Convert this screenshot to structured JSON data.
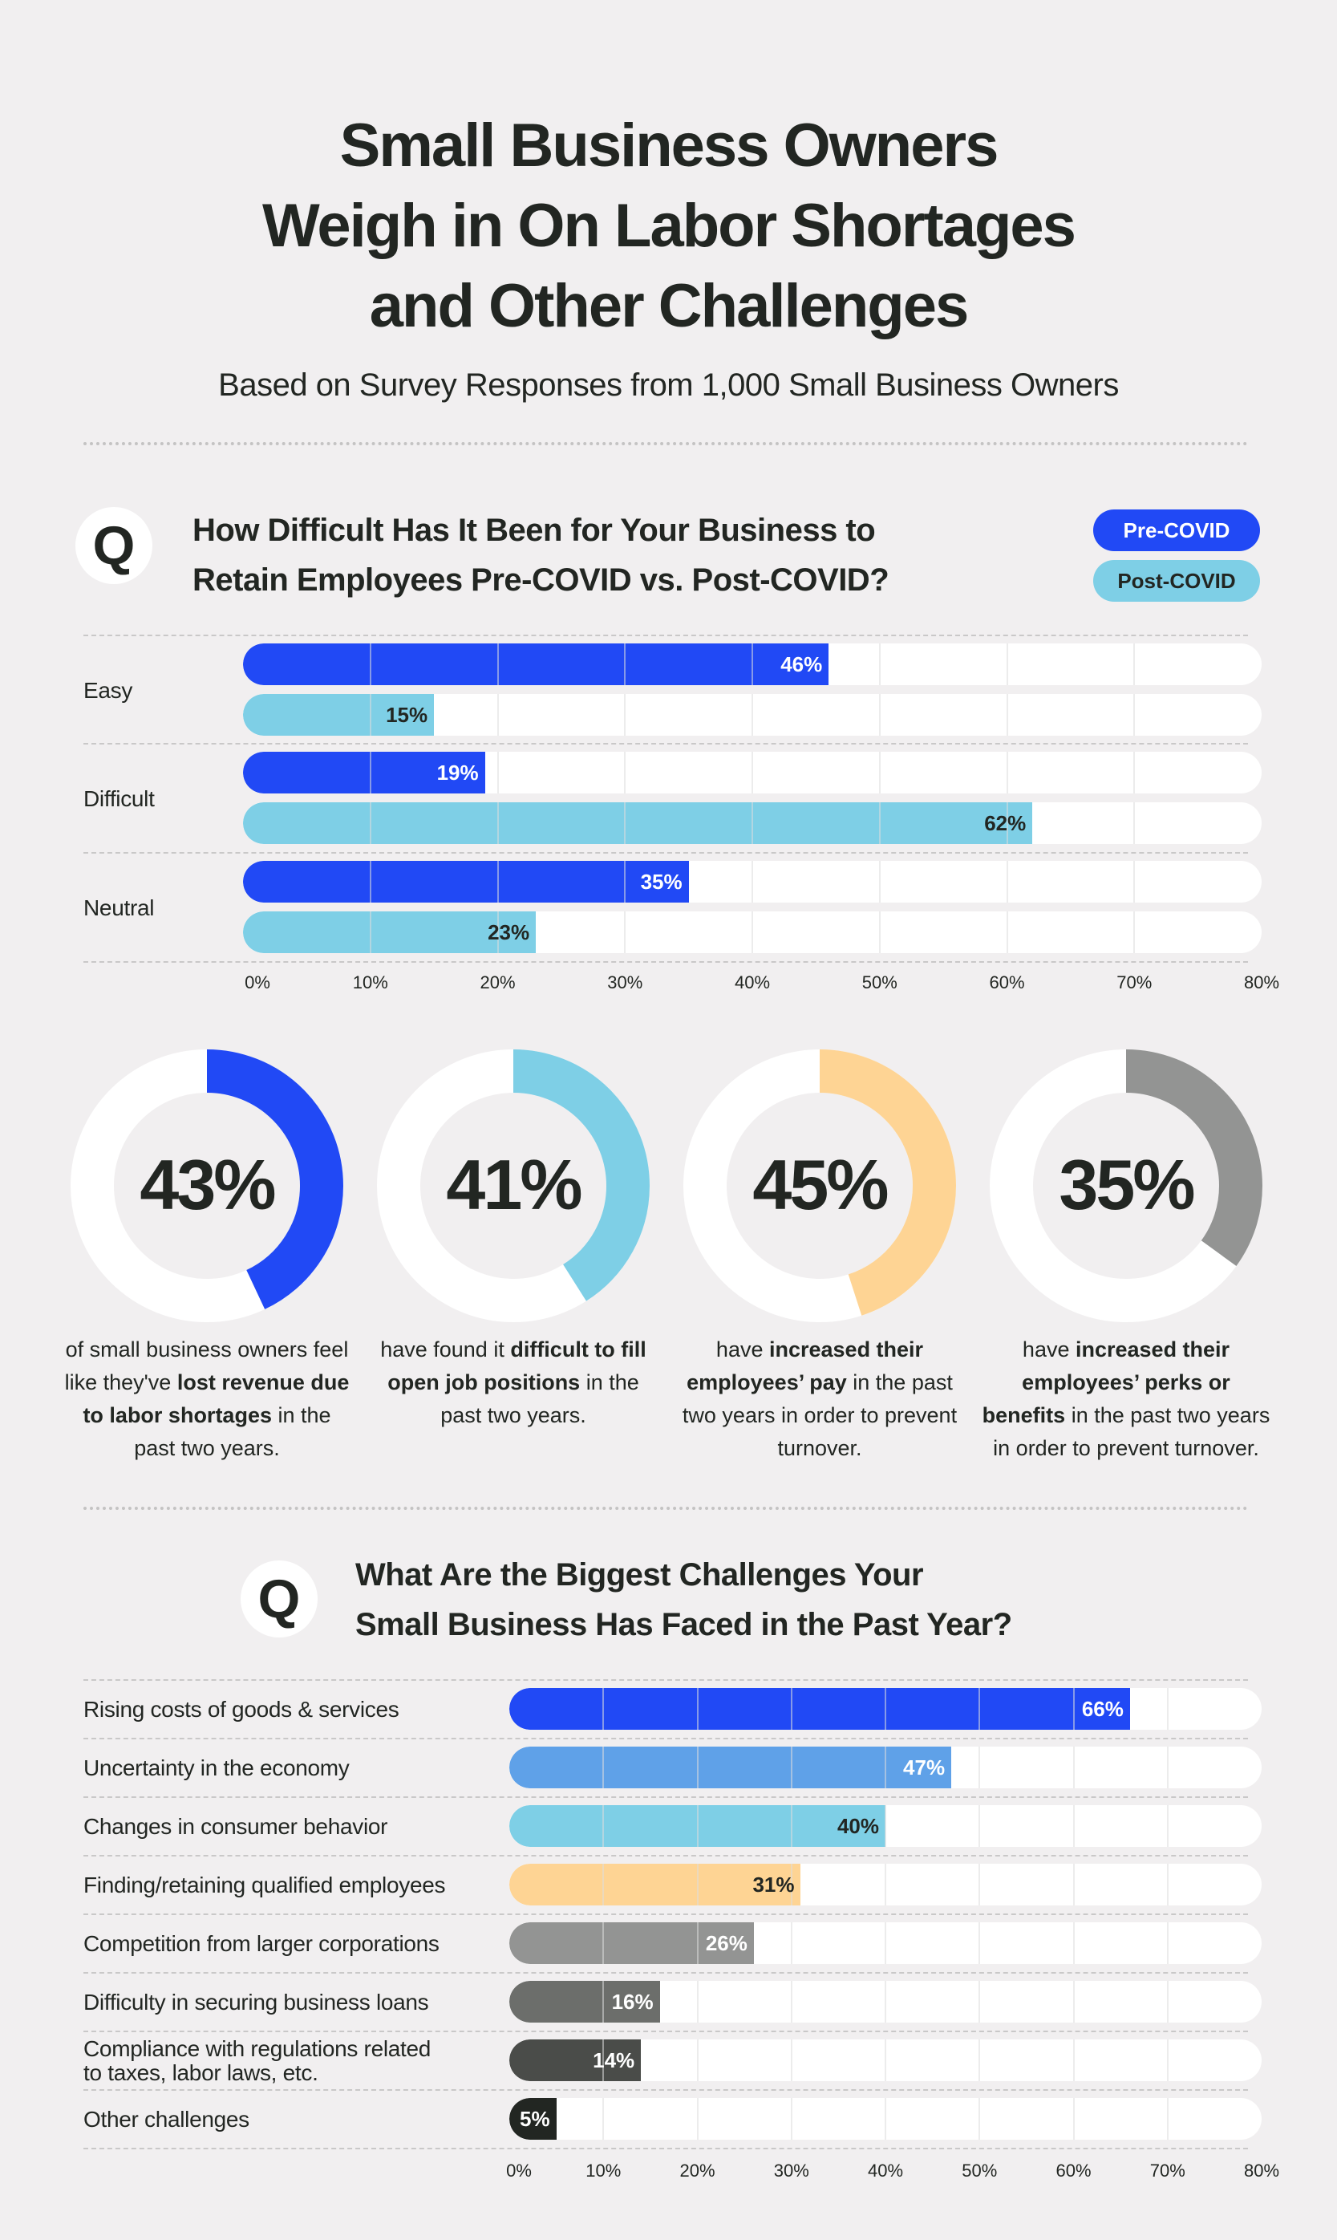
{
  "header": {
    "title_lines": [
      "Small Business Owners",
      "Weigh in On Labor Shortages",
      "and Other Challenges"
    ],
    "subtitle": "Based on Survey Responses from 1,000 Small Business Owners"
  },
  "q1": {
    "badge": "Q",
    "heading_lines": [
      "How Difficult Has It Been for Your Business to",
      "Retain Employees Pre-COVID vs. Post-COVID?"
    ],
    "legend": [
      {
        "label": "Pre-COVID",
        "color": "#2149f5",
        "text_color": "#ffffff"
      },
      {
        "label": "Post-COVID",
        "color": "#7ecfe6",
        "text_color": "#222622"
      }
    ]
  },
  "q2": {
    "badge": "Q",
    "heading_lines": [
      "What Are the Biggest Challenges Your",
      "Small Business Has Faced in the Past Year?"
    ]
  },
  "stats": [
    {
      "value": "43%",
      "percent": 43,
      "color": "#2149f5",
      "caption_parts": [
        [
          "of small business owners feel like they've ",
          false
        ],
        [
          "lost revenue due to labor shortages",
          true
        ],
        [
          " in the past two years.",
          false
        ]
      ]
    },
    {
      "value": "41%",
      "percent": 41,
      "color": "#7ecfe6",
      "caption_parts": [
        [
          "have found it ",
          false
        ],
        [
          "difficult to fill open job positions",
          true
        ],
        [
          " in the past two years.",
          false
        ]
      ]
    },
    {
      "value": "45%",
      "percent": 45,
      "color": "#fed494",
      "caption_parts": [
        [
          "have ",
          false
        ],
        [
          "increased their employees’ pay",
          true
        ],
        [
          " in the past two years in order to prevent turnover.",
          false
        ]
      ]
    },
    {
      "value": "35%",
      "percent": 35,
      "color": "#939493",
      "caption_parts": [
        [
          "have ",
          false
        ],
        [
          "increased their employees’ perks or benefits",
          true
        ],
        [
          " in the past two years in order to prevent turnover.",
          false
        ]
      ]
    }
  ],
  "chart_data": [
    {
      "type": "bar",
      "orientation": "horizontal",
      "title": "How Difficult Has It Been for Your Business to Retain Employees Pre-COVID vs. Post-COVID?",
      "categories": [
        "Easy",
        "Difficult",
        "Neutral"
      ],
      "series": [
        {
          "name": "Pre-COVID",
          "color": "#2149f5",
          "label_color": "#ffffff",
          "values": [
            46,
            19,
            35
          ],
          "labels": [
            "46%",
            "19%",
            "35%"
          ]
        },
        {
          "name": "Post-COVID",
          "color": "#7ecfe6",
          "label_color": "#222622",
          "values": [
            15,
            62,
            23
          ],
          "labels": [
            "15%",
            "62%",
            "23%"
          ]
        }
      ],
      "xlim": [
        0,
        80
      ],
      "xticks": [
        "0%",
        "10%",
        "20%",
        "30%",
        "40%",
        "50%",
        "60%",
        "70%",
        "80%"
      ],
      "grid": true,
      "legend_position": "top-right"
    },
    {
      "type": "pie",
      "subtype": "donut",
      "items": [
        {
          "label": "Lost revenue due to labor shortages",
          "value": 43
        },
        {
          "label": "Difficult to fill open job positions",
          "value": 41
        },
        {
          "label": "Increased employees' pay",
          "value": 45
        },
        {
          "label": "Increased employees' perks or benefits",
          "value": 35
        }
      ]
    },
    {
      "type": "bar",
      "orientation": "horizontal",
      "title": "What Are the Biggest Challenges Your Small Business Has Faced in the Past Year?",
      "categories": [
        "Rising costs of goods & services",
        "Uncertainty in the economy",
        "Changes in consumer behavior",
        "Finding/retaining qualified employees",
        "Competition from larger corporations",
        "Difficulty in securing business loans",
        "Compliance with regulations related to taxes, labor laws, etc.",
        "Other challenges"
      ],
      "values": [
        66,
        47,
        40,
        31,
        26,
        16,
        14,
        5
      ],
      "labels": [
        "66%",
        "47%",
        "40%",
        "31%",
        "26%",
        "16%",
        "14%",
        "5%"
      ],
      "colors": [
        "#2149f5",
        "#5fa1e8",
        "#7ecfe6",
        "#fed494",
        "#939493",
        "#6c6e6b",
        "#4a4c49",
        "#222622"
      ],
      "label_colors": [
        "#ffffff",
        "#ffffff",
        "#222622",
        "#222622",
        "#ffffff",
        "#ffffff",
        "#ffffff",
        "#ffffff"
      ],
      "xlim": [
        0,
        80
      ],
      "xticks": [
        "0%",
        "10%",
        "20%",
        "30%",
        "40%",
        "50%",
        "60%",
        "70%",
        "80%"
      ],
      "grid": true
    }
  ]
}
